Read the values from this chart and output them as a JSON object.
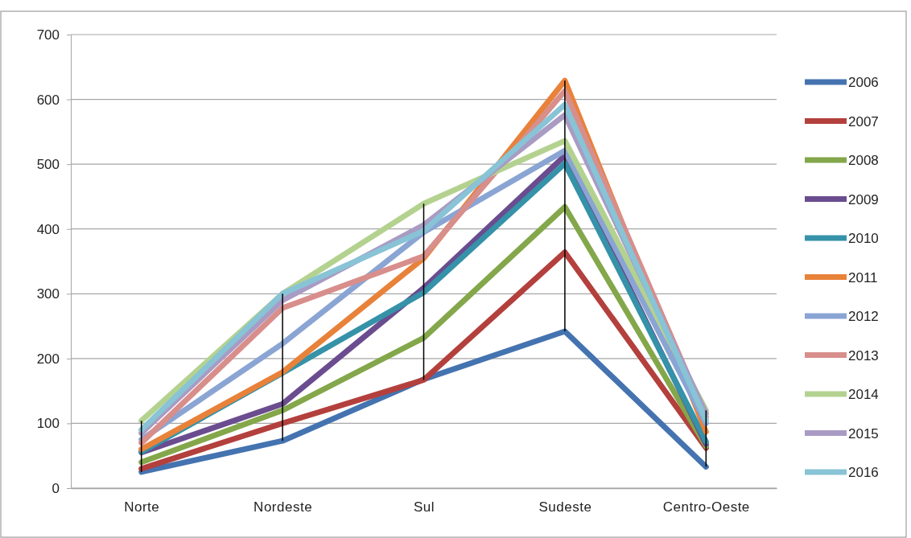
{
  "chart_data": {
    "type": "line",
    "categories": [
      "Norte",
      "Nordeste",
      "Sul",
      "Sudeste",
      "Centro-Oeste"
    ],
    "ylim": [
      0,
      700
    ],
    "yticks": [
      0,
      100,
      200,
      300,
      400,
      500,
      600,
      700
    ],
    "grid": "y",
    "legend": "right",
    "marker": "none",
    "line_style": "solid",
    "series": [
      {
        "name": "2006",
        "color": "#4473b0",
        "values": [
          25,
          73,
          168,
          242,
          33
        ]
      },
      {
        "name": "2007",
        "color": "#b3403d",
        "values": [
          30,
          100,
          167,
          364,
          62
        ]
      },
      {
        "name": "2008",
        "color": "#83a74a",
        "values": [
          40,
          120,
          232,
          434,
          65
        ]
      },
      {
        "name": "2009",
        "color": "#6a4c8f",
        "values": [
          55,
          130,
          309,
          513,
          68
        ]
      },
      {
        "name": "2010",
        "color": "#3592a8",
        "values": [
          56,
          178,
          302,
          501,
          72
        ]
      },
      {
        "name": "2011",
        "color": "#e8823a",
        "values": [
          60,
          179,
          355,
          629,
          87
        ]
      },
      {
        "name": "2012",
        "color": "#8aa5d3",
        "values": [
          75,
          223,
          395,
          521,
          100
        ]
      },
      {
        "name": "2013",
        "color": "#d88e8b",
        "values": [
          70,
          278,
          358,
          613,
          110
        ]
      },
      {
        "name": "2014",
        "color": "#b4d28f",
        "values": [
          104,
          300,
          439,
          536,
          120
        ]
      },
      {
        "name": "2015",
        "color": "#a99bc3",
        "values": [
          85,
          290,
          406,
          576,
          115
        ]
      },
      {
        "name": "2016",
        "color": "#88c3d6",
        "values": [
          90,
          300,
          397,
          592,
          105
        ]
      },
      {
        "type": "bar",
        "color": "#000000",
        "base": [
          25,
          73,
          167,
          242,
          33
        ],
        "values": [
          79,
          227,
          272,
          387,
          87
        ]
      }
    ]
  }
}
